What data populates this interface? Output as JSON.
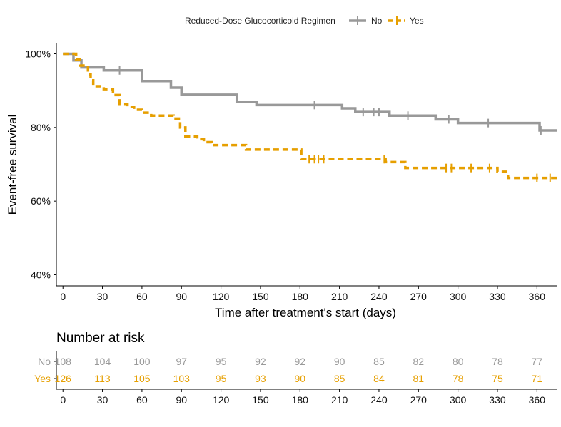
{
  "legend": {
    "title": "Reduced-Dose Glucocorticoid Regimen",
    "items": [
      {
        "label": "No",
        "color": "#999999",
        "dash": "solid"
      },
      {
        "label": "Yes",
        "color": "#E69F00",
        "dash": "dashed"
      }
    ]
  },
  "chart_data": {
    "type": "line",
    "subtype": "kaplan-meier step",
    "xlabel": "Time after treatment's start (days)",
    "ylabel": "Event-free survival",
    "xlim": [
      -5,
      375
    ],
    "ylim": [
      37,
      103
    ],
    "x_ticks": [
      0,
      30,
      60,
      90,
      120,
      150,
      180,
      210,
      240,
      270,
      300,
      330,
      360
    ],
    "y_ticks": [
      40,
      60,
      80,
      100
    ],
    "y_tick_labels": [
      "40%",
      "60%",
      "80%",
      "100%"
    ],
    "legend_position": "top",
    "grid": false,
    "series": [
      {
        "name": "No",
        "color": "#999999",
        "dash": "solid",
        "steps": [
          [
            0,
            100
          ],
          [
            8,
            98.2
          ],
          [
            14,
            96.3
          ],
          [
            31,
            95.5
          ],
          [
            60,
            92.6
          ],
          [
            82,
            90.8
          ],
          [
            90,
            88.9
          ],
          [
            132,
            86.9
          ],
          [
            147,
            86.1
          ],
          [
            172,
            86.1
          ],
          [
            212,
            85.2
          ],
          [
            222,
            84.2
          ],
          [
            248,
            83.2
          ],
          [
            283,
            82.2
          ],
          [
            300,
            81.2
          ],
          [
            330,
            81.2
          ],
          [
            362,
            79.2
          ],
          [
            375,
            79.2
          ]
        ],
        "censor_x": [
          43,
          191,
          228,
          236,
          240,
          262,
          293,
          323,
          363
        ]
      },
      {
        "name": "Yes",
        "color": "#E69F00",
        "dash": "dashed",
        "steps": [
          [
            0,
            100
          ],
          [
            10,
            98.4
          ],
          [
            13,
            96.8
          ],
          [
            19,
            94.4
          ],
          [
            21,
            92.8
          ],
          [
            23,
            91.2
          ],
          [
            31,
            90.4
          ],
          [
            38,
            88.8
          ],
          [
            43,
            86.4
          ],
          [
            49,
            85.6
          ],
          [
            54,
            84.8
          ],
          [
            60,
            84.0
          ],
          [
            67,
            83.2
          ],
          [
            84,
            82.4
          ],
          [
            89,
            80.0
          ],
          [
            93,
            77.6
          ],
          [
            102,
            76.8
          ],
          [
            107,
            76.0
          ],
          [
            113,
            75.2
          ],
          [
            133,
            75.2
          ],
          [
            139,
            74.0
          ],
          [
            175,
            74.0
          ],
          [
            181,
            71.4
          ],
          [
            245,
            70.6
          ],
          [
            260,
            69.0
          ],
          [
            278,
            69.0
          ],
          [
            300,
            69.0
          ],
          [
            330,
            68.0
          ],
          [
            338,
            66.3
          ],
          [
            352,
            66.3
          ],
          [
            375,
            66.3
          ]
        ],
        "censor_x": [
          187,
          191,
          194,
          198,
          244,
          291,
          295,
          310,
          324,
          360,
          370
        ]
      }
    ]
  },
  "risk_table": {
    "title": "Number at risk",
    "times": [
      "0",
      "30",
      "60",
      "90",
      "120",
      "150",
      "180",
      "210",
      "240",
      "270",
      "300",
      "330",
      "360"
    ],
    "rows": [
      {
        "label": "No",
        "color": "#999999",
        "values": [
          "108",
          "104",
          "100",
          "97",
          "95",
          "92",
          "92",
          "90",
          "85",
          "82",
          "80",
          "78",
          "77"
        ]
      },
      {
        "label": "Yes",
        "color": "#E69F00",
        "values": [
          "126",
          "113",
          "105",
          "103",
          "95",
          "93",
          "90",
          "85",
          "84",
          "81",
          "78",
          "75",
          "71"
        ]
      }
    ]
  }
}
